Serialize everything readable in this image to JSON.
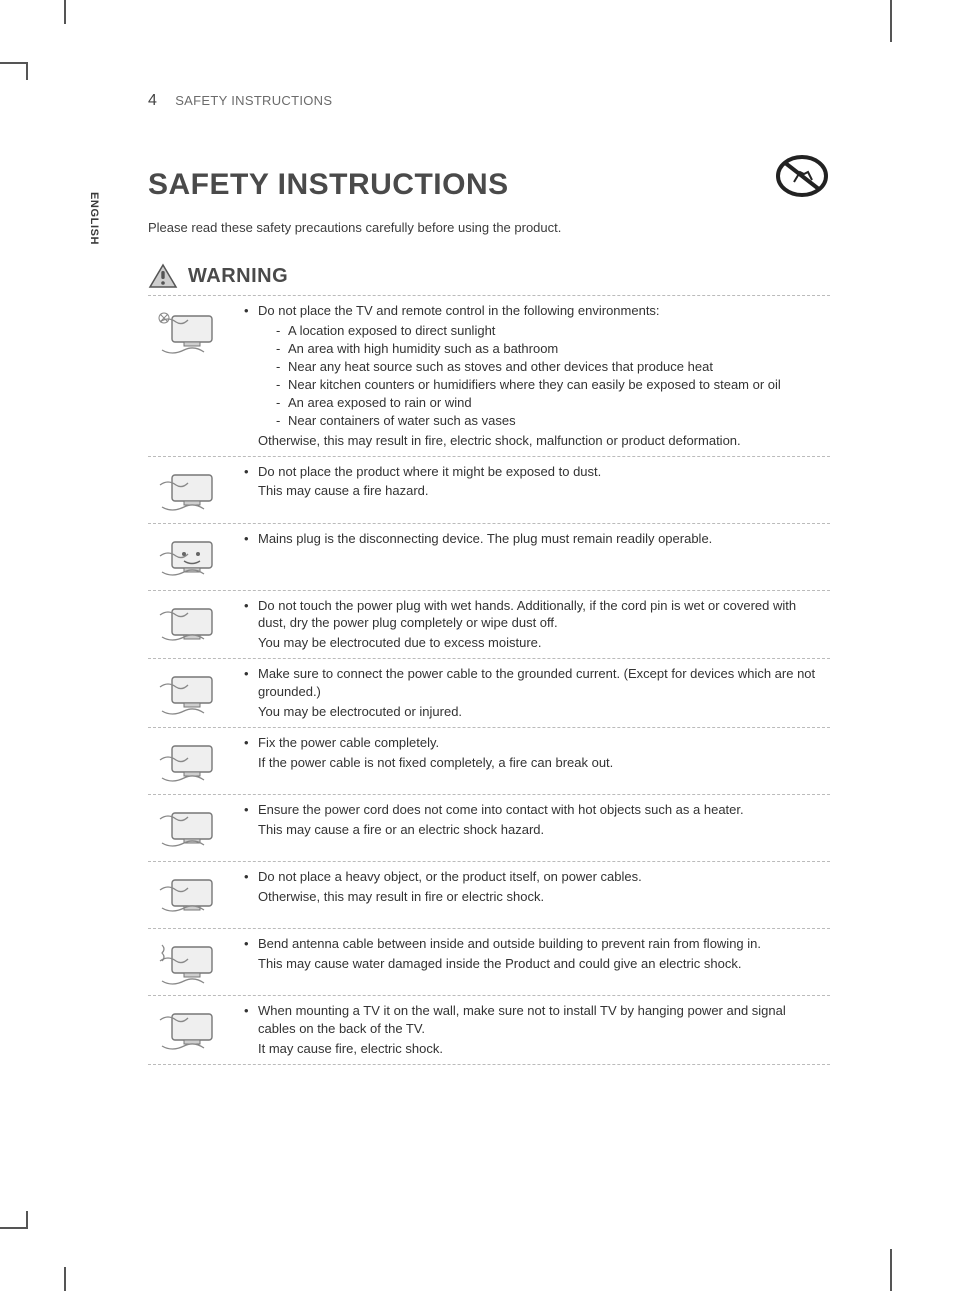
{
  "page": {
    "number": "4",
    "running_head": "SAFETY INSTRUCTIONS",
    "language_tab": "ENGLISH",
    "title": "SAFETY INSTRUCTIONS",
    "intro": "Please read these safety precautions carefully before using the product.",
    "warning_label": "WARNING"
  },
  "colors": {
    "text": "#323232",
    "muted": "#6b6b6b",
    "rule": "#bbbbbb",
    "background": "#ffffff",
    "icon_stroke": "#555555",
    "icon_fill": "#dcdcdc"
  },
  "typography": {
    "body_fontsize_pt": 10,
    "title_fontsize_pt": 22,
    "warning_fontsize_pt": 15,
    "font_family": "Arial"
  },
  "icons": {
    "top_right": "no-touch-prohibition-icon",
    "warning": "warning-triangle-icon",
    "row_thumbs": [
      "tv-sun-remote-icon",
      "tv-dust-icon",
      "tv-plug-face-icon",
      "wet-hand-plug-icon",
      "ground-outlet-icon",
      "secure-plug-icon",
      "heater-cord-icon",
      "heavy-object-cord-icon",
      "antenna-rain-icon",
      "wall-mount-cable-icon"
    ]
  },
  "rows": [
    {
      "lead": "Do not place the TV and remote control in the following environments:",
      "sub": [
        "A location exposed to direct sunlight",
        "An area with high humidity such as a bathroom",
        "Near any heat source such as stoves and other devices that produce heat",
        "Near kitchen counters or humidifiers where they can easily be exposed to steam or oil",
        "An area exposed to rain or wind",
        "Near containers of water such as vases"
      ],
      "tail": "Otherwise, this may result in fire, electric shock, malfunction or product deformation."
    },
    {
      "lead": "Do not place the product where it might be exposed to dust.",
      "cont": "This may cause a fire hazard."
    },
    {
      "lead": "Mains plug is the disconnecting device. The plug must remain readily operable."
    },
    {
      "lead": "Do not touch the power plug with wet hands. Additionally, if the cord pin is wet or covered with dust, dry the power plug completely or wipe dust off.",
      "cont": "You may be electrocuted due to excess moisture."
    },
    {
      "lead": "Make sure to connect the power cable to the grounded current. (Except for devices which are not grounded.)",
      "cont": "You may be electrocuted or injured."
    },
    {
      "lead": "Fix the power cable completely.",
      "cont": "If the power cable is not fixed completely, a fire can break out."
    },
    {
      "lead": "Ensure the power cord does not come into contact with hot objects such as a heater.",
      "cont": "This may cause a fire or an electric shock hazard."
    },
    {
      "lead": "Do not place a heavy object, or the product itself, on power cables.",
      "cont": "Otherwise, this may result in fire or electric shock."
    },
    {
      "lead": "Bend antenna cable between inside and outside building to prevent rain from flowing in.",
      "cont": "This may cause water damaged inside the Product and could give an electric shock."
    },
    {
      "lead": "When mounting a TV it on the wall, make sure not to install TV by hanging power and signal cables on the back of the TV.",
      "cont": "It may cause fire, electric shock."
    }
  ]
}
